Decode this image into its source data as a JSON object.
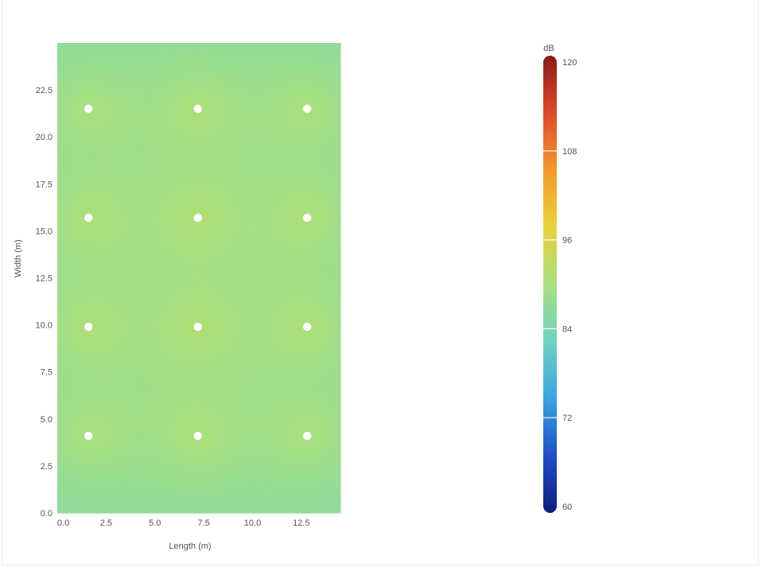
{
  "chart_data": {
    "type": "heatmap",
    "title": "",
    "xlabel": "Length (m)",
    "ylabel": "Width (m)",
    "xlim": [
      0,
      14.5
    ],
    "ylim": [
      0,
      25
    ],
    "x_ticks": [
      "0.0",
      "2.5",
      "5.0",
      "7.5",
      "10.0",
      "12.5"
    ],
    "y_ticks": [
      "0.0",
      "2.5",
      "5.0",
      "7.5",
      "10.0",
      "12.5",
      "15.0",
      "17.5",
      "20.0",
      "22.5"
    ],
    "grid": false,
    "sources": [
      {
        "x": 1.6,
        "y": 4.1
      },
      {
        "x": 7.2,
        "y": 4.1
      },
      {
        "x": 12.8,
        "y": 4.1
      },
      {
        "x": 1.6,
        "y": 9.9
      },
      {
        "x": 7.2,
        "y": 9.9
      },
      {
        "x": 12.8,
        "y": 9.9
      },
      {
        "x": 1.6,
        "y": 15.7
      },
      {
        "x": 7.2,
        "y": 15.7
      },
      {
        "x": 12.8,
        "y": 15.7
      },
      {
        "x": 1.6,
        "y": 21.5
      },
      {
        "x": 7.2,
        "y": 21.5
      },
      {
        "x": 12.8,
        "y": 21.5
      }
    ],
    "value_range_db": [
      87,
      91
    ],
    "colorbar": {
      "unit": "dB",
      "min": 60,
      "max": 120,
      "ticks": [
        "60",
        "72",
        "84",
        "96",
        "108",
        "120"
      ],
      "colors": [
        "#0d1d7c",
        "#1f4fc9",
        "#3aa3e0",
        "#6fd3c3",
        "#a7e07e",
        "#e9d23b",
        "#f39a2c",
        "#e0482a",
        "#8c1a18"
      ]
    }
  }
}
